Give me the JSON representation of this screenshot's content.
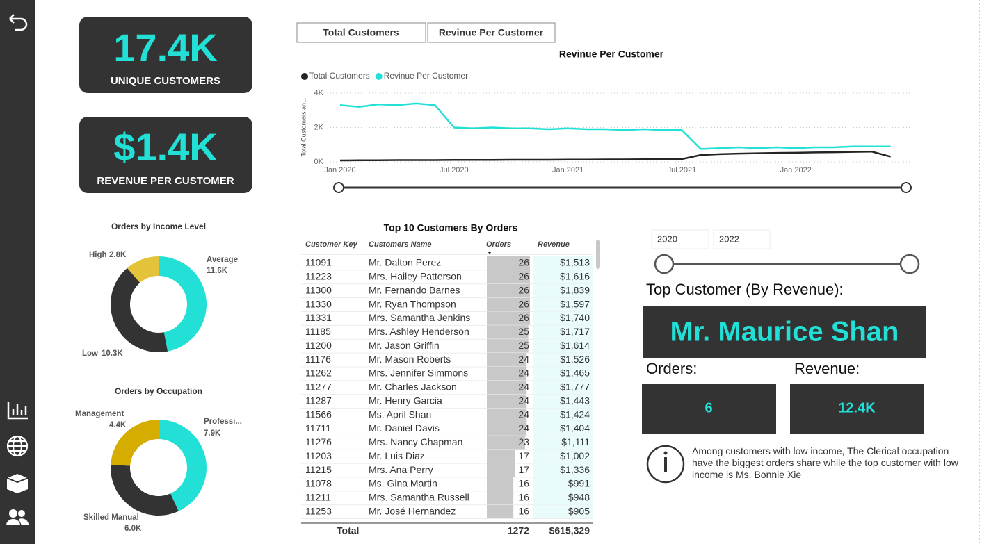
{
  "cards": [
    {
      "value": "17.4K",
      "label": "UNIQUE CUSTOMERS"
    },
    {
      "value": "$1.4K",
      "label": "REVENUE PER CUSTOMER"
    }
  ],
  "buttons": [
    "Total Customers",
    "Revinue Per Customer"
  ],
  "chart_data": [
    {
      "type": "line",
      "title": "Revinue Per Customer",
      "y_label": "Total Customers an...",
      "categories": [
        "Jan 2020",
        null,
        null,
        null,
        null,
        null,
        "Jul 2020",
        null,
        null,
        null,
        null,
        null,
        "Jan 2021",
        null,
        null,
        null,
        null,
        null,
        "Jul 2021",
        null,
        null,
        null,
        null,
        null,
        "Jan 2022",
        null,
        null,
        null,
        null,
        null
      ],
      "series": [
        {
          "name": "Total Customers",
          "color": "#252423",
          "values": [
            80,
            90,
            90,
            100,
            100,
            100,
            110,
            110,
            110,
            120,
            120,
            120,
            130,
            130,
            140,
            140,
            150,
            150,
            160,
            400,
            450,
            480,
            500,
            520,
            530,
            550,
            560,
            580,
            600,
            300
          ]
        },
        {
          "name": "Revinue Per Customer",
          "color": "#22e0d6",
          "values": [
            3300,
            3200,
            3350,
            3300,
            3400,
            3300,
            2000,
            1950,
            2000,
            1950,
            1950,
            1900,
            1950,
            1900,
            1900,
            1850,
            1900,
            1850,
            1850,
            750,
            800,
            850,
            800,
            850,
            800,
            850,
            850,
            900,
            900,
            900
          ]
        }
      ],
      "ylim": [
        0,
        4000
      ],
      "yticks": [
        {
          "value": 0,
          "label": "0K"
        },
        {
          "value": 2000,
          "label": "2K"
        },
        {
          "value": 4000,
          "label": "4K"
        }
      ],
      "grid": true
    },
    {
      "type": "donut",
      "title": "Orders by Income Level",
      "categories": [
        "Average",
        "Low",
        "High"
      ],
      "values": [
        11600,
        10300,
        2800
      ],
      "value_labels": [
        "11.6K",
        "10.3K",
        "2.8K"
      ],
      "colors": [
        "#22e0d6",
        "#333333",
        "#e3c33a"
      ]
    },
    {
      "type": "donut",
      "title": "Orders by Occupation",
      "categories": [
        "Professi...",
        "Skilled Manual",
        "Management"
      ],
      "values": [
        7900,
        6000,
        4400
      ],
      "value_labels": [
        "7.9K",
        "6.0K",
        "4.4K"
      ],
      "colors": [
        "#22e0d6",
        "#333333",
        "#d4ad00"
      ]
    }
  ],
  "table": {
    "title": "Top 10 Customers By Orders",
    "columns": [
      "Customer Key",
      "Customers Name",
      "Orders",
      "Revenue"
    ],
    "rows": [
      [
        "11091",
        "Mr. Dalton Perez",
        26,
        "$1,513"
      ],
      [
        "11223",
        "Mrs. Hailey Patterson",
        26,
        "$1,616"
      ],
      [
        "11300",
        "Mr. Fernando Barnes",
        26,
        "$1,839"
      ],
      [
        "11330",
        "Mr. Ryan Thompson",
        26,
        "$1,597"
      ],
      [
        "11331",
        "Mrs. Samantha Jenkins",
        26,
        "$1,740"
      ],
      [
        "11185",
        "Mrs. Ashley Henderson",
        25,
        "$1,717"
      ],
      [
        "11200",
        "Mr. Jason Griffin",
        25,
        "$1,614"
      ],
      [
        "11176",
        "Mr. Mason Roberts",
        24,
        "$1,526"
      ],
      [
        "11262",
        "Mrs. Jennifer Simmons",
        24,
        "$1,465"
      ],
      [
        "11277",
        "Mr. Charles Jackson",
        24,
        "$1,777"
      ],
      [
        "11287",
        "Mr. Henry Garcia",
        24,
        "$1,443"
      ],
      [
        "11566",
        "Ms. April Shan",
        24,
        "$1,424"
      ],
      [
        "11711",
        "Mr. Daniel Davis",
        24,
        "$1,404"
      ],
      [
        "11276",
        "Mrs. Nancy Chapman",
        23,
        "$1,111"
      ],
      [
        "11203",
        "Mr. Luis Diaz",
        17,
        "$1,002"
      ],
      [
        "11215",
        "Mrs. Ana Perry",
        17,
        "$1,336"
      ],
      [
        "11078",
        "Ms. Gina Martin",
        16,
        "$991"
      ],
      [
        "11211",
        "Mrs. Samantha Russell",
        16,
        "$948"
      ],
      [
        "11253",
        "Mr. José Hernandez",
        16,
        "$905"
      ]
    ],
    "total": [
      "Total",
      1272,
      "$615,329"
    ]
  },
  "slicer": {
    "start": "2020",
    "end": "2022"
  },
  "top_customer": {
    "title": "Top Customer (By Revenue):",
    "name": "Mr. Maurice Shan",
    "orders_label": "Orders:",
    "orders": 6,
    "revenue_label": "Revenue:",
    "revenue": "12.4K"
  },
  "info": "Among customers with low income, The Clerical occupation have the biggest orders share while the top customer with low income is Ms. Bonnie Xie"
}
